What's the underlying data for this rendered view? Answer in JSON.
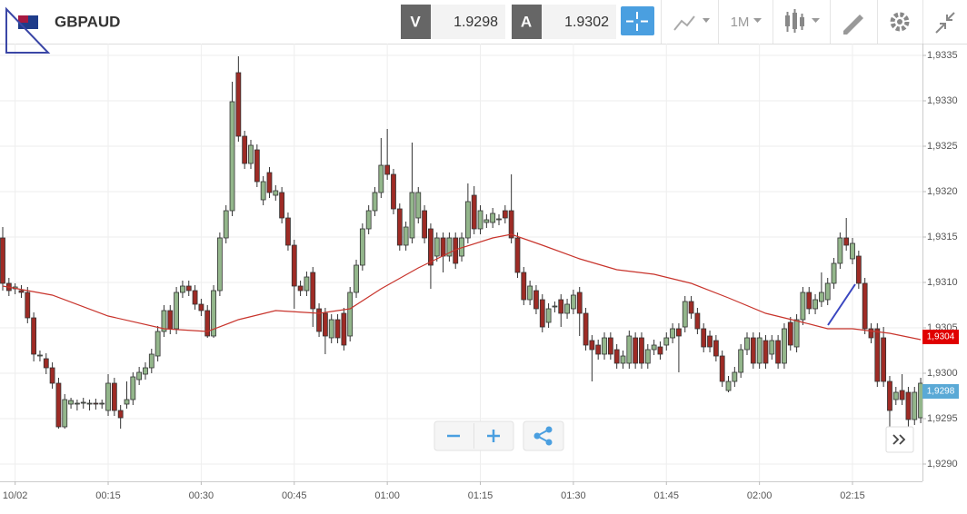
{
  "header": {
    "symbol": "GBPAUD",
    "bid_label": "V",
    "bid": "1.9298",
    "ask_label": "A",
    "ask": "1.9302",
    "timeframe": "1M"
  },
  "chart_data": {
    "type": "candlestick",
    "ohlc": [
      [
        1.93149,
        1.93161,
        1.93091,
        1.93099
      ],
      [
        1.93099,
        1.93105,
        1.93085,
        1.93091
      ],
      [
        1.93093,
        1.93099,
        1.93087,
        1.93095
      ],
      [
        1.93091,
        1.93097,
        1.93083,
        1.93089
      ],
      [
        1.93089,
        1.93095,
        1.93055,
        1.93061
      ],
      [
        1.93061,
        1.93067,
        1.93013,
        1.93021
      ],
      [
        1.93019,
        1.93025,
        1.93013,
        1.9302
      ],
      [
        1.93016,
        1.93022,
        1.92999,
        1.93006
      ],
      [
        1.93006,
        1.93012,
        1.92983,
        1.92989
      ],
      [
        1.92989,
        1.92995,
        1.92939,
        1.92941
      ],
      [
        1.92941,
        1.92977,
        1.92939,
        1.92971
      ],
      [
        1.92966,
        1.92973,
        1.92961,
        1.9297
      ],
      [
        1.92966,
        1.92971,
        1.92959,
        1.92967
      ],
      [
        1.92967,
        1.92973,
        1.92961,
        1.92968
      ],
      [
        1.92966,
        1.92971,
        1.92959,
        1.92967
      ],
      [
        1.92967,
        1.92972,
        1.9296,
        1.92966
      ],
      [
        1.92966,
        1.92971,
        1.92961,
        1.92967
      ],
      [
        1.92959,
        1.92999,
        1.92953,
        1.92989
      ],
      [
        1.92989,
        1.92995,
        1.92953,
        1.92959
      ],
      [
        1.92959,
        1.92965,
        1.92939,
        1.92951
      ],
      [
        1.92966,
        1.92991,
        1.92961,
        1.92971
      ],
      [
        1.92971,
        1.93001,
        1.92965,
        1.92996
      ],
      [
        1.92993,
        1.93007,
        1.92987,
        1.93001
      ],
      [
        1.92999,
        1.93012,
        1.92993,
        1.93006
      ],
      [
        1.93006,
        1.93027,
        1.93,
        1.93021
      ],
      [
        1.93019,
        1.93052,
        1.93013,
        1.93046
      ],
      [
        1.93046,
        1.93075,
        1.9304,
        1.93069
      ],
      [
        1.93069,
        1.93075,
        1.93043,
        1.93049
      ],
      [
        1.93049,
        1.93095,
        1.93043,
        1.93089
      ],
      [
        1.93089,
        1.93102,
        1.93083,
        1.93096
      ],
      [
        1.93096,
        1.93102,
        1.93085,
        1.93091
      ],
      [
        1.93091,
        1.93097,
        1.9307,
        1.93076
      ],
      [
        1.93076,
        1.93082,
        1.93063,
        1.93069
      ],
      [
        1.93069,
        1.93075,
        1.93039,
        1.93041
      ],
      [
        1.93041,
        1.93097,
        1.93039,
        1.93091
      ],
      [
        1.93091,
        1.93155,
        1.93085,
        1.93149
      ],
      [
        1.93149,
        1.93185,
        1.93143,
        1.93179
      ],
      [
        1.93179,
        1.93321,
        1.93173,
        1.93299
      ],
      [
        1.93331,
        1.93349,
        1.93255,
        1.93261
      ],
      [
        1.93261,
        1.93267,
        1.93225,
        1.93231
      ],
      [
        1.93231,
        1.93257,
        1.93225,
        1.93251
      ],
      [
        1.93246,
        1.93252,
        1.93205,
        1.93211
      ],
      [
        1.93191,
        1.93217,
        1.93185,
        1.93211
      ],
      [
        1.93221,
        1.93227,
        1.93193,
        1.93199
      ],
      [
        1.93196,
        1.93207,
        1.9319,
        1.93201
      ],
      [
        1.93199,
        1.93205,
        1.93165,
        1.93171
      ],
      [
        1.93171,
        1.93177,
        1.93135,
        1.93141
      ],
      [
        1.93141,
        1.93147,
        1.93071,
        1.93096
      ],
      [
        1.93096,
        1.93102,
        1.93085,
        1.93091
      ],
      [
        1.93091,
        1.93112,
        1.93085,
        1.93106
      ],
      [
        1.93111,
        1.93117,
        1.93051,
        1.93071
      ],
      [
        1.93071,
        1.93077,
        1.9304,
        1.93046
      ],
      [
        1.93066,
        1.93072,
        1.93021,
        1.93041
      ],
      [
        1.93039,
        1.93065,
        1.93033,
        1.93059
      ],
      [
        1.93059,
        1.93065,
        1.93033,
        1.93039
      ],
      [
        1.93066,
        1.93072,
        1.93025,
        1.93031
      ],
      [
        1.93041,
        1.93095,
        1.93035,
        1.93089
      ],
      [
        1.93089,
        1.93125,
        1.93083,
        1.93119
      ],
      [
        1.93119,
        1.93165,
        1.93113,
        1.93159
      ],
      [
        1.93159,
        1.93185,
        1.93153,
        1.93179
      ],
      [
        1.93179,
        1.93205,
        1.93173,
        1.93199
      ],
      [
        1.93199,
        1.93259,
        1.93193,
        1.93229
      ],
      [
        1.93229,
        1.93269,
        1.93213,
        1.93219
      ],
      [
        1.93219,
        1.93225,
        1.93175,
        1.93181
      ],
      [
        1.93181,
        1.93187,
        1.93135,
        1.93141
      ],
      [
        1.93141,
        1.93167,
        1.93135,
        1.93161
      ],
      [
        1.93149,
        1.93254,
        1.93143,
        1.93199
      ],
      [
        1.93171,
        1.93205,
        1.93165,
        1.93199
      ],
      [
        1.93179,
        1.93185,
        1.93143,
        1.93149
      ],
      [
        1.93159,
        1.93165,
        1.93093,
        1.93119
      ],
      [
        1.93129,
        1.93155,
        1.93123,
        1.93149
      ],
      [
        1.93149,
        1.93155,
        1.93111,
        1.93129
      ],
      [
        1.93129,
        1.93155,
        1.93123,
        1.93149
      ],
      [
        1.93149,
        1.93155,
        1.93115,
        1.93121
      ],
      [
        1.93129,
        1.93155,
        1.93123,
        1.93149
      ],
      [
        1.93149,
        1.93209,
        1.93143,
        1.93189
      ],
      [
        1.93196,
        1.93206,
        1.93153,
        1.93159
      ],
      [
        1.93159,
        1.93185,
        1.93153,
        1.93179
      ],
      [
        1.93166,
        1.93175,
        1.9316,
        1.93169
      ],
      [
        1.93166,
        1.93182,
        1.9316,
        1.93176
      ],
      [
        1.93169,
        1.93175,
        1.93163,
        1.9317
      ],
      [
        1.93179,
        1.93185,
        1.93165,
        1.93171
      ],
      [
        1.93179,
        1.93219,
        1.93143,
        1.93149
      ],
      [
        1.93149,
        1.93155,
        1.93105,
        1.93111
      ],
      [
        1.93111,
        1.93117,
        1.93075,
        1.93081
      ],
      [
        1.93081,
        1.93102,
        1.93075,
        1.93096
      ],
      [
        1.93091,
        1.93097,
        1.93065,
        1.93071
      ],
      [
        1.93081,
        1.93087,
        1.93045,
        1.93051
      ],
      [
        1.93056,
        1.93077,
        1.9305,
        1.93071
      ],
      [
        1.93073,
        1.93079,
        1.93067,
        1.93074
      ],
      [
        1.93081,
        1.93087,
        1.93051,
        1.93066
      ],
      [
        1.93066,
        1.93082,
        1.9306,
        1.93076
      ],
      [
        1.93071,
        1.93092,
        1.93065,
        1.93086
      ],
      [
        1.93089,
        1.93095,
        1.93041,
        1.93066
      ],
      [
        1.93066,
        1.93072,
        1.93025,
        1.93031
      ],
      [
        1.93036,
        1.93042,
        1.92991,
        1.93026
      ],
      [
        1.93031,
        1.93037,
        1.93015,
        1.93021
      ],
      [
        1.93021,
        1.93045,
        1.93015,
        1.93039
      ],
      [
        1.93039,
        1.93045,
        1.93015,
        1.93021
      ],
      [
        1.93026,
        1.93032,
        1.93005,
        1.93011
      ],
      [
        1.93011,
        1.93025,
        1.93005,
        1.93019
      ],
      [
        1.93011,
        1.93047,
        1.93005,
        1.93041
      ],
      [
        1.93039,
        1.93045,
        1.93005,
        1.93011
      ],
      [
        1.93039,
        1.93045,
        1.93005,
        1.93011
      ],
      [
        1.93011,
        1.93032,
        1.93005,
        1.93026
      ],
      [
        1.93026,
        1.93037,
        1.9302,
        1.93031
      ],
      [
        1.93029,
        1.93035,
        1.93015,
        1.93021
      ],
      [
        1.93031,
        1.93045,
        1.93025,
        1.93039
      ],
      [
        1.93039,
        1.93055,
        1.93033,
        1.93049
      ],
      [
        1.93049,
        1.93055,
        1.93001,
        1.93041
      ],
      [
        1.93051,
        1.93085,
        1.93045,
        1.93079
      ],
      [
        1.93079,
        1.93085,
        1.9306,
        1.93066
      ],
      [
        1.93066,
        1.93072,
        1.93043,
        1.93049
      ],
      [
        1.93049,
        1.93055,
        1.93023,
        1.93029
      ],
      [
        1.93041,
        1.93047,
        1.93023,
        1.93029
      ],
      [
        1.93036,
        1.93042,
        1.93013,
        1.93019
      ],
      [
        1.93019,
        1.93025,
        1.92985,
        1.92991
      ],
      [
        1.92981,
        1.92997,
        1.92979,
        1.92991
      ],
      [
        1.92991,
        1.93007,
        1.92985,
        1.93001
      ],
      [
        1.93001,
        1.93032,
        1.92995,
        1.93026
      ],
      [
        1.93026,
        1.93045,
        1.9302,
        1.93039
      ],
      [
        1.93039,
        1.93045,
        1.93005,
        1.93011
      ],
      [
        1.93011,
        1.93045,
        1.93005,
        1.93039
      ],
      [
        1.93036,
        1.93042,
        1.93005,
        1.93011
      ],
      [
        1.93021,
        1.93042,
        1.93015,
        1.93036
      ],
      [
        1.93036,
        1.93042,
        1.93005,
        1.93011
      ],
      [
        1.93011,
        1.93055,
        1.93005,
        1.93049
      ],
      [
        1.93056,
        1.93062,
        1.93025,
        1.93031
      ],
      [
        1.93029,
        1.93065,
        1.93023,
        1.93059
      ],
      [
        1.93059,
        1.93095,
        1.93053,
        1.93089
      ],
      [
        1.93089,
        1.93095,
        1.93065,
        1.93071
      ],
      [
        1.93071,
        1.93087,
        1.93065,
        1.93081
      ],
      [
        1.93079,
        1.93111,
        1.93073,
        1.93089
      ],
      [
        1.93081,
        1.93105,
        1.93075,
        1.93099
      ],
      [
        1.93099,
        1.93127,
        1.93093,
        1.93121
      ],
      [
        1.93121,
        1.93155,
        1.93115,
        1.93149
      ],
      [
        1.93149,
        1.93171,
        1.93135,
        1.93141
      ],
      [
        1.93126,
        1.93149,
        1.9312,
        1.93143
      ],
      [
        1.93129,
        1.93135,
        1.93093,
        1.93099
      ],
      [
        1.93099,
        1.93105,
        1.93043,
        1.93049
      ],
      [
        1.93049,
        1.93055,
        1.93033,
        1.93039
      ],
      [
        1.93049,
        1.93055,
        1.92985,
        1.92991
      ],
      [
        1.93039,
        1.93051,
        1.92985,
        1.92991
      ],
      [
        1.92991,
        1.92997,
        1.92941,
        1.92959
      ],
      [
        1.92971,
        1.92985,
        1.92965,
        1.92979
      ],
      [
        1.92981,
        1.92999,
        1.92965,
        1.92971
      ],
      [
        1.92979,
        1.92985,
        1.92939,
        1.92949
      ],
      [
        1.92949,
        1.92985,
        1.92943,
        1.92979
      ],
      [
        1.92951,
        1.92995,
        1.92945,
        1.92989
      ]
    ],
    "up_color": "#93b68b",
    "down_color": "#9e2b25",
    "moving_average": {
      "color": "#c8342c",
      "x": [
        0,
        8,
        17,
        26,
        33,
        38,
        44,
        51,
        56,
        61,
        67,
        73,
        79,
        82,
        87,
        93,
        99,
        105,
        111,
        117,
        123,
        129,
        133,
        137,
        143,
        148
      ],
      "values": [
        1.93096,
        1.93086,
        1.93063,
        1.93049,
        1.93046,
        1.93059,
        1.93069,
        1.93066,
        1.93071,
        1.93093,
        1.93116,
        1.93136,
        1.93149,
        1.93153,
        1.93141,
        1.93126,
        1.93114,
        1.93109,
        1.93099,
        1.93083,
        1.93066,
        1.93056,
        1.93049,
        1.93049,
        1.93044,
        1.93037
      ]
    },
    "xlim": [
      -0.44,
      148.28
    ],
    "ylim": [
      1.92881,
      1.93363
    ],
    "xticks": [
      {
        "value": 2,
        "label": "10/02"
      },
      {
        "value": 17,
        "label": "00:15"
      },
      {
        "value": 32,
        "label": "00:30"
      },
      {
        "value": 47,
        "label": "00:45"
      },
      {
        "value": 62,
        "label": "01:00"
      },
      {
        "value": 77,
        "label": "01:15"
      },
      {
        "value": 92,
        "label": "01:30"
      },
      {
        "value": 107,
        "label": "01:45"
      },
      {
        "value": 122,
        "label": "02:00"
      },
      {
        "value": 137,
        "label": "02:15"
      }
    ],
    "yticks": [
      {
        "value": 1.929,
        "label": "1,9290"
      },
      {
        "value": 1.9295,
        "label": "1,9295"
      },
      {
        "value": 1.93,
        "label": "1,9300"
      },
      {
        "value": 1.9305,
        "label": "1,9305"
      },
      {
        "value": 1.931,
        "label": "1,9310"
      },
      {
        "value": 1.9315,
        "label": "1,9315"
      },
      {
        "value": 1.932,
        "label": "1,9320"
      },
      {
        "value": 1.9325,
        "label": "1,9325"
      },
      {
        "value": 1.933,
        "label": "1,9330"
      },
      {
        "value": 1.9335,
        "label": "1,9335"
      }
    ],
    "grid": true,
    "price_markers": [
      {
        "value": 1.9304,
        "label": "1,9304",
        "color": "#e00000"
      },
      {
        "value": 1.9298,
        "label": "1,9298",
        "color": "#5aa9d6"
      }
    ]
  }
}
